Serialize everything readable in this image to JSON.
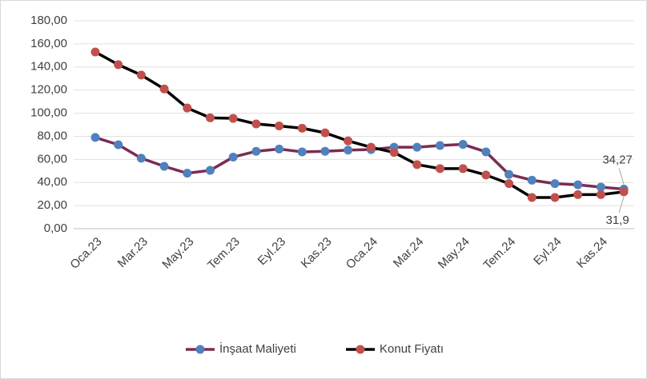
{
  "chart_data": {
    "type": "line",
    "categories": [
      "Oca.23",
      null,
      "Mar.23",
      null,
      "May.23",
      null,
      "Tem.23",
      null,
      "Eyl.23",
      null,
      "Kas.23",
      null,
      "Oca.24",
      null,
      "Mar.24",
      null,
      "May.24",
      null,
      "Tem.24",
      null,
      "Eyl.24",
      null,
      "Kas.24",
      null
    ],
    "series": [
      {
        "name": "İnşaat Maliyeti",
        "color": "#7b2c52",
        "marker_color": "#4f81bd",
        "values": [
          79,
          72.7,
          61,
          54,
          48,
          50.5,
          62,
          67,
          69,
          66.5,
          67,
          68,
          68.5,
          70.5,
          70.5,
          72,
          73,
          66.5,
          47,
          42,
          39,
          38,
          36,
          34.27
        ],
        "value_labels": [
          null,
          null,
          null,
          null,
          null,
          null,
          null,
          null,
          null,
          null,
          null,
          null,
          null,
          null,
          null,
          null,
          null,
          null,
          null,
          null,
          null,
          null,
          null,
          "34,27"
        ]
      },
      {
        "name": "Konut Fiyatı",
        "color": "#000000",
        "marker_color": "#c0504d",
        "values": [
          153,
          142,
          133,
          121,
          104.5,
          96,
          95.5,
          90.7,
          89,
          87,
          83,
          76,
          70.5,
          66,
          55.5,
          52,
          52,
          46.5,
          39,
          27,
          27,
          29.5,
          29.5,
          31.9
        ],
        "value_labels": [
          null,
          null,
          null,
          null,
          null,
          null,
          null,
          null,
          null,
          null,
          null,
          null,
          null,
          null,
          null,
          null,
          null,
          null,
          null,
          null,
          null,
          null,
          null,
          "31,9"
        ]
      }
    ],
    "ylim": [
      0,
      180
    ],
    "yticks": [
      {
        "value": 0,
        "label": "0,00"
      },
      {
        "value": 20,
        "label": "20,00"
      },
      {
        "value": 40,
        "label": "40,00"
      },
      {
        "value": 60,
        "label": "60,00"
      },
      {
        "value": 80,
        "label": "80,00"
      },
      {
        "value": 100,
        "label": "100,00"
      },
      {
        "value": 120,
        "label": "120,00"
      },
      {
        "value": 140,
        "label": "140,00"
      },
      {
        "value": 160,
        "label": "160,00"
      },
      {
        "value": 180,
        "label": "180,00"
      }
    ],
    "grid": true,
    "legend": "bottom"
  }
}
